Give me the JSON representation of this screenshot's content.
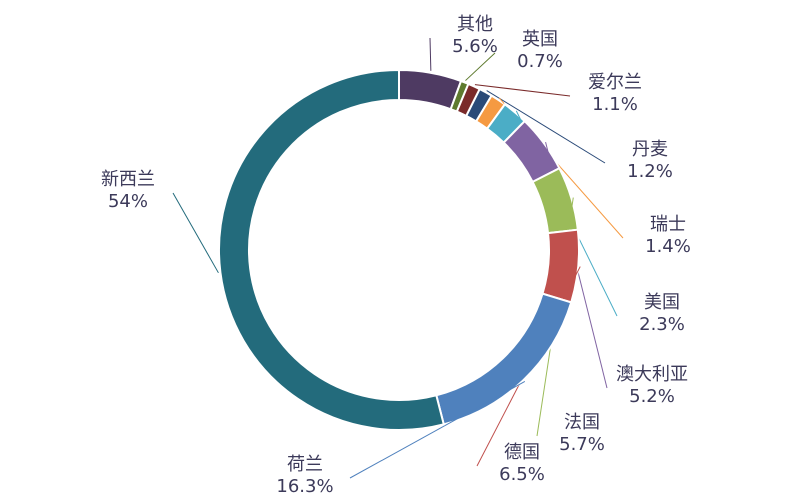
{
  "chart_data": {
    "type": "donut",
    "categories": [
      "其他",
      "英国",
      "爱尔兰",
      "丹麦",
      "瑞士",
      "美国",
      "澳大利亚",
      "法国",
      "德国",
      "荷兰",
      "新西兰"
    ],
    "values": [
      5.6,
      0.7,
      1.1,
      1.2,
      1.4,
      2.3,
      5.2,
      5.7,
      6.5,
      16.3,
      54
    ],
    "value_labels": [
      "5.6%",
      "0.7%",
      "1.1%",
      "1.2%",
      "1.4%",
      "2.3%",
      "5.2%",
      "5.7%",
      "6.5%",
      "16.3%",
      "54%"
    ],
    "colors": [
      "#4e3a62",
      "#5e7a2e",
      "#7a2a2a",
      "#2a4a78",
      "#f59a42",
      "#4badc6",
      "#8064a2",
      "#9bbb59",
      "#c0504d",
      "#4f81bd",
      "#236b7c"
    ]
  }
}
